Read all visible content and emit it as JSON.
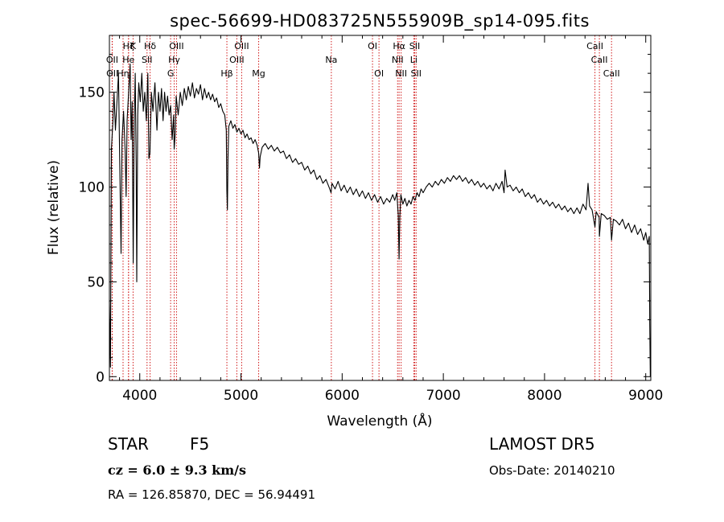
{
  "chart_data": {
    "type": "line",
    "title": "spec-56699-HD083725N555909B_sp14-095.fits",
    "xlabel": "Wavelength (Å)",
    "ylabel": "Flux (relative)",
    "xlim": [
      3700,
      9050
    ],
    "ylim": [
      -2,
      180
    ],
    "xticks": [
      4000,
      5000,
      6000,
      7000,
      8000,
      9000
    ],
    "yticks": [
      0,
      50,
      100,
      150
    ],
    "grid": false,
    "series": [
      {
        "points": [
          [
            3700,
            40
          ],
          [
            3710,
            5
          ],
          [
            3720,
            120
          ],
          [
            3735,
            135
          ],
          [
            3745,
            150
          ],
          [
            3760,
            130
          ],
          [
            3775,
            145
          ],
          [
            3790,
            160
          ],
          [
            3800,
            120
          ],
          [
            3815,
            65
          ],
          [
            3825,
            125
          ],
          [
            3840,
            140
          ],
          [
            3855,
            120
          ],
          [
            3865,
            95
          ],
          [
            3875,
            135
          ],
          [
            3890,
            150
          ],
          [
            3905,
            165
          ],
          [
            3915,
            125
          ],
          [
            3925,
            145
          ],
          [
            3935,
            60
          ],
          [
            3945,
            135
          ],
          [
            3955,
            160
          ],
          [
            3965,
            110
          ],
          [
            3970,
            50
          ],
          [
            3980,
            138
          ],
          [
            3990,
            155
          ],
          [
            4005,
            145
          ],
          [
            4020,
            160
          ],
          [
            4035,
            140
          ],
          [
            4050,
            150
          ],
          [
            4065,
            135
          ],
          [
            4080,
            160
          ],
          [
            4090,
            115
          ],
          [
            4101,
            118
          ],
          [
            4115,
            150
          ],
          [
            4130,
            140
          ],
          [
            4150,
            155
          ],
          [
            4170,
            130
          ],
          [
            4185,
            150
          ],
          [
            4200,
            140
          ],
          [
            4215,
            152
          ],
          [
            4230,
            135
          ],
          [
            4245,
            150
          ],
          [
            4260,
            140
          ],
          [
            4275,
            148
          ],
          [
            4290,
            138
          ],
          [
            4305,
            143
          ],
          [
            4320,
            125
          ],
          [
            4335,
            138
          ],
          [
            4340,
            120
          ],
          [
            4350,
            128
          ],
          [
            4360,
            148
          ],
          [
            4380,
            138
          ],
          [
            4400,
            150
          ],
          [
            4420,
            143
          ],
          [
            4440,
            152
          ],
          [
            4460,
            146
          ],
          [
            4480,
            153
          ],
          [
            4500,
            148
          ],
          [
            4520,
            155
          ],
          [
            4540,
            147
          ],
          [
            4560,
            152
          ],
          [
            4580,
            149
          ],
          [
            4600,
            154
          ],
          [
            4620,
            146
          ],
          [
            4640,
            152
          ],
          [
            4660,
            147
          ],
          [
            4680,
            150
          ],
          [
            4700,
            146
          ],
          [
            4720,
            149
          ],
          [
            4740,
            145
          ],
          [
            4760,
            147
          ],
          [
            4780,
            142
          ],
          [
            4800,
            144
          ],
          [
            4820,
            140
          ],
          [
            4840,
            138
          ],
          [
            4855,
            130
          ],
          [
            4861,
            98
          ],
          [
            4866,
            88
          ],
          [
            4872,
            115
          ],
          [
            4880,
            132
          ],
          [
            4900,
            135
          ],
          [
            4920,
            131
          ],
          [
            4940,
            133
          ],
          [
            4960,
            129
          ],
          [
            4980,
            131
          ],
          [
            5000,
            128
          ],
          [
            5020,
            130
          ],
          [
            5040,
            126
          ],
          [
            5060,
            128
          ],
          [
            5080,
            125
          ],
          [
            5100,
            126
          ],
          [
            5120,
            123
          ],
          [
            5140,
            125
          ],
          [
            5160,
            122
          ],
          [
            5175,
            118
          ],
          [
            5183,
            110
          ],
          [
            5190,
            116
          ],
          [
            5210,
            121
          ],
          [
            5240,
            123
          ],
          [
            5270,
            120
          ],
          [
            5300,
            122
          ],
          [
            5330,
            119
          ],
          [
            5360,
            121
          ],
          [
            5390,
            118
          ],
          [
            5420,
            119
          ],
          [
            5450,
            115
          ],
          [
            5480,
            117
          ],
          [
            5510,
            113
          ],
          [
            5540,
            115
          ],
          [
            5570,
            112
          ],
          [
            5600,
            113
          ],
          [
            5630,
            109
          ],
          [
            5660,
            111
          ],
          [
            5690,
            107
          ],
          [
            5720,
            109
          ],
          [
            5750,
            104
          ],
          [
            5780,
            106
          ],
          [
            5810,
            102
          ],
          [
            5840,
            104
          ],
          [
            5870,
            100
          ],
          [
            5890,
            97
          ],
          [
            5900,
            102
          ],
          [
            5930,
            99
          ],
          [
            5960,
            103
          ],
          [
            5990,
            98
          ],
          [
            6020,
            101
          ],
          [
            6050,
            97
          ],
          [
            6080,
            100
          ],
          [
            6110,
            96
          ],
          [
            6140,
            99
          ],
          [
            6170,
            95
          ],
          [
            6200,
            98
          ],
          [
            6230,
            94
          ],
          [
            6260,
            97
          ],
          [
            6290,
            93
          ],
          [
            6320,
            96
          ],
          [
            6350,
            92
          ],
          [
            6380,
            95
          ],
          [
            6410,
            91
          ],
          [
            6440,
            94
          ],
          [
            6470,
            92
          ],
          [
            6500,
            96
          ],
          [
            6520,
            93
          ],
          [
            6540,
            97
          ],
          [
            6555,
            85
          ],
          [
            6563,
            62
          ],
          [
            6570,
            84
          ],
          [
            6580,
            96
          ],
          [
            6600,
            91
          ],
          [
            6620,
            94
          ],
          [
            6640,
            90
          ],
          [
            6660,
            93
          ],
          [
            6680,
            91
          ],
          [
            6700,
            95
          ],
          [
            6720,
            93
          ],
          [
            6740,
            97
          ],
          [
            6760,
            95
          ],
          [
            6780,
            99
          ],
          [
            6800,
            97
          ],
          [
            6830,
            100
          ],
          [
            6860,
            102
          ],
          [
            6890,
            100
          ],
          [
            6920,
            103
          ],
          [
            6950,
            101
          ],
          [
            6980,
            104
          ],
          [
            7010,
            102
          ],
          [
            7040,
            105
          ],
          [
            7070,
            103
          ],
          [
            7100,
            106
          ],
          [
            7130,
            104
          ],
          [
            7160,
            106
          ],
          [
            7190,
            103
          ],
          [
            7220,
            105
          ],
          [
            7250,
            102
          ],
          [
            7280,
            104
          ],
          [
            7310,
            101
          ],
          [
            7340,
            103
          ],
          [
            7370,
            100
          ],
          [
            7400,
            102
          ],
          [
            7430,
            99
          ],
          [
            7460,
            101
          ],
          [
            7490,
            98
          ],
          [
            7520,
            102
          ],
          [
            7550,
            99
          ],
          [
            7580,
            103
          ],
          [
            7600,
            97
          ],
          [
            7610,
            109
          ],
          [
            7630,
            100
          ],
          [
            7660,
            101
          ],
          [
            7690,
            98
          ],
          [
            7720,
            100
          ],
          [
            7750,
            97
          ],
          [
            7780,
            99
          ],
          [
            7810,
            95
          ],
          [
            7840,
            97
          ],
          [
            7870,
            94
          ],
          [
            7900,
            96
          ],
          [
            7930,
            92
          ],
          [
            7960,
            94
          ],
          [
            7990,
            91
          ],
          [
            8020,
            93
          ],
          [
            8050,
            90
          ],
          [
            8080,
            92
          ],
          [
            8110,
            89
          ],
          [
            8140,
            91
          ],
          [
            8170,
            88
          ],
          [
            8200,
            90
          ],
          [
            8230,
            87
          ],
          [
            8260,
            89
          ],
          [
            8290,
            86
          ],
          [
            8320,
            89
          ],
          [
            8350,
            86
          ],
          [
            8380,
            91
          ],
          [
            8410,
            88
          ],
          [
            8430,
            102
          ],
          [
            8445,
            90
          ],
          [
            8470,
            88
          ],
          [
            8498,
            79
          ],
          [
            8510,
            87
          ],
          [
            8540,
            84
          ],
          [
            8542,
            74
          ],
          [
            8560,
            86
          ],
          [
            8590,
            85
          ],
          [
            8620,
            83
          ],
          [
            8650,
            84
          ],
          [
            8662,
            72
          ],
          [
            8680,
            83
          ],
          [
            8710,
            82
          ],
          [
            8740,
            80
          ],
          [
            8770,
            83
          ],
          [
            8800,
            78
          ],
          [
            8830,
            81
          ],
          [
            8860,
            76
          ],
          [
            8890,
            80
          ],
          [
            8920,
            75
          ],
          [
            8950,
            78
          ],
          [
            8980,
            72
          ],
          [
            9000,
            76
          ],
          [
            9020,
            70
          ],
          [
            9035,
            74
          ],
          [
            9040,
            28
          ],
          [
            9045,
            0
          ]
        ]
      }
    ],
    "lines": [
      {
        "label": "Hζ",
        "x": 3889,
        "row": 0
      },
      {
        "label": "K",
        "x": 3934,
        "row": 0
      },
      {
        "label": "Hδ",
        "x": 4102,
        "row": 0
      },
      {
        "label": "OIII",
        "x": 4363,
        "row": 0
      },
      {
        "label": "OIII",
        "x": 5007,
        "row": 0
      },
      {
        "label": "OI",
        "x": 6300,
        "row": 0
      },
      {
        "label": "Hα",
        "x": 6563,
        "row": 0
      },
      {
        "label": "SII",
        "x": 6717,
        "row": 0
      },
      {
        "label": "CaII",
        "x": 8498,
        "row": 0
      },
      {
        "label": "OII",
        "x": 3727,
        "row": 1
      },
      {
        "label": "He",
        "x": 3889,
        "row": 1
      },
      {
        "label": "SII",
        "x": 4072,
        "row": 1
      },
      {
        "label": "Hγ",
        "x": 4340,
        "row": 1
      },
      {
        "label": "OIII",
        "x": 4959,
        "row": 1
      },
      {
        "label": "Na",
        "x": 5893,
        "row": 1
      },
      {
        "label": "NII",
        "x": 6548,
        "row": 1
      },
      {
        "label": "Li",
        "x": 6708,
        "row": 1
      },
      {
        "label": "CaII",
        "x": 8542,
        "row": 1
      },
      {
        "label": "OII",
        "x": 3729,
        "row": 2
      },
      {
        "label": "Hη",
        "x": 3835,
        "row": 2
      },
      {
        "label": "G",
        "x": 4305,
        "row": 2
      },
      {
        "label": "Hβ",
        "x": 4861,
        "row": 2
      },
      {
        "label": "Mg",
        "x": 5175,
        "row": 2
      },
      {
        "label": "OI",
        "x": 6364,
        "row": 2
      },
      {
        "label": "NII",
        "x": 6583,
        "row": 2
      },
      {
        "label": "SII",
        "x": 6731,
        "row": 2
      },
      {
        "label": "CaII",
        "x": 8662,
        "row": 2
      }
    ],
    "line_color": "#d11a1a"
  },
  "footer": {
    "object_type": "STAR",
    "subclass": "F5",
    "survey": "LAMOST DR5",
    "redshift": "cz = 6.0 ± 9.3 km/s",
    "obs_date": "Obs-Date: 20140210",
    "coords": "RA = 126.85870, DEC =  56.94491"
  }
}
